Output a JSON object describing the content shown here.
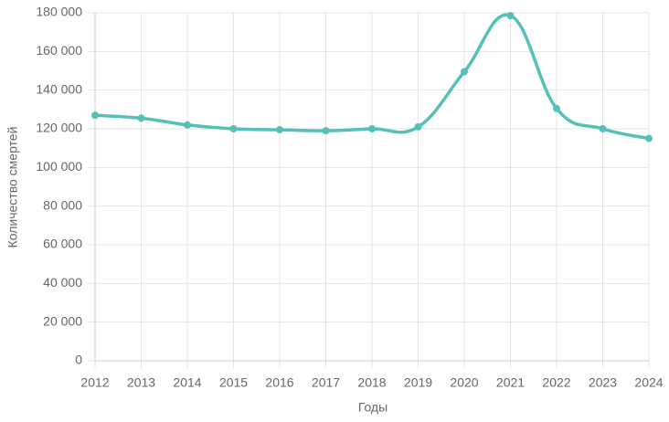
{
  "chart_data": {
    "type": "line",
    "x_label": "Годы",
    "y_label": "Количество смертей",
    "x": [
      2012,
      2013,
      2014,
      2015,
      2016,
      2017,
      2018,
      2019,
      2020,
      2021,
      2022,
      2023,
      2024
    ],
    "series": [
      {
        "color": "#55c0b6",
        "values": [
          127000,
          125500,
          122000,
          120000,
          119500,
          119000,
          120000,
          121000,
          149500,
          178500,
          130500,
          120000,
          115000
        ]
      }
    ],
    "xlim": [
      2012,
      2024
    ],
    "xticks": [
      2012,
      2013,
      2014,
      2015,
      2016,
      2017,
      2018,
      2019,
      2020,
      2021,
      2022,
      2023,
      2024
    ],
    "ylim": [
      0,
      180000
    ],
    "yticks": [
      0,
      {
        "value": 20000,
        "label": "20 000"
      },
      {
        "value": 40000,
        "label": "40 000"
      },
      {
        "value": 60000,
        "label": "60 000"
      },
      {
        "value": 80000,
        "label": "80 000"
      },
      {
        "value": 100000,
        "label": "100 000"
      },
      {
        "value": 120000,
        "label": "120 000"
      },
      {
        "value": 140000,
        "label": "140 000"
      },
      {
        "value": 160000,
        "label": "160 000"
      },
      {
        "value": 180000,
        "label": "180 000"
      }
    ],
    "grid": true
  }
}
